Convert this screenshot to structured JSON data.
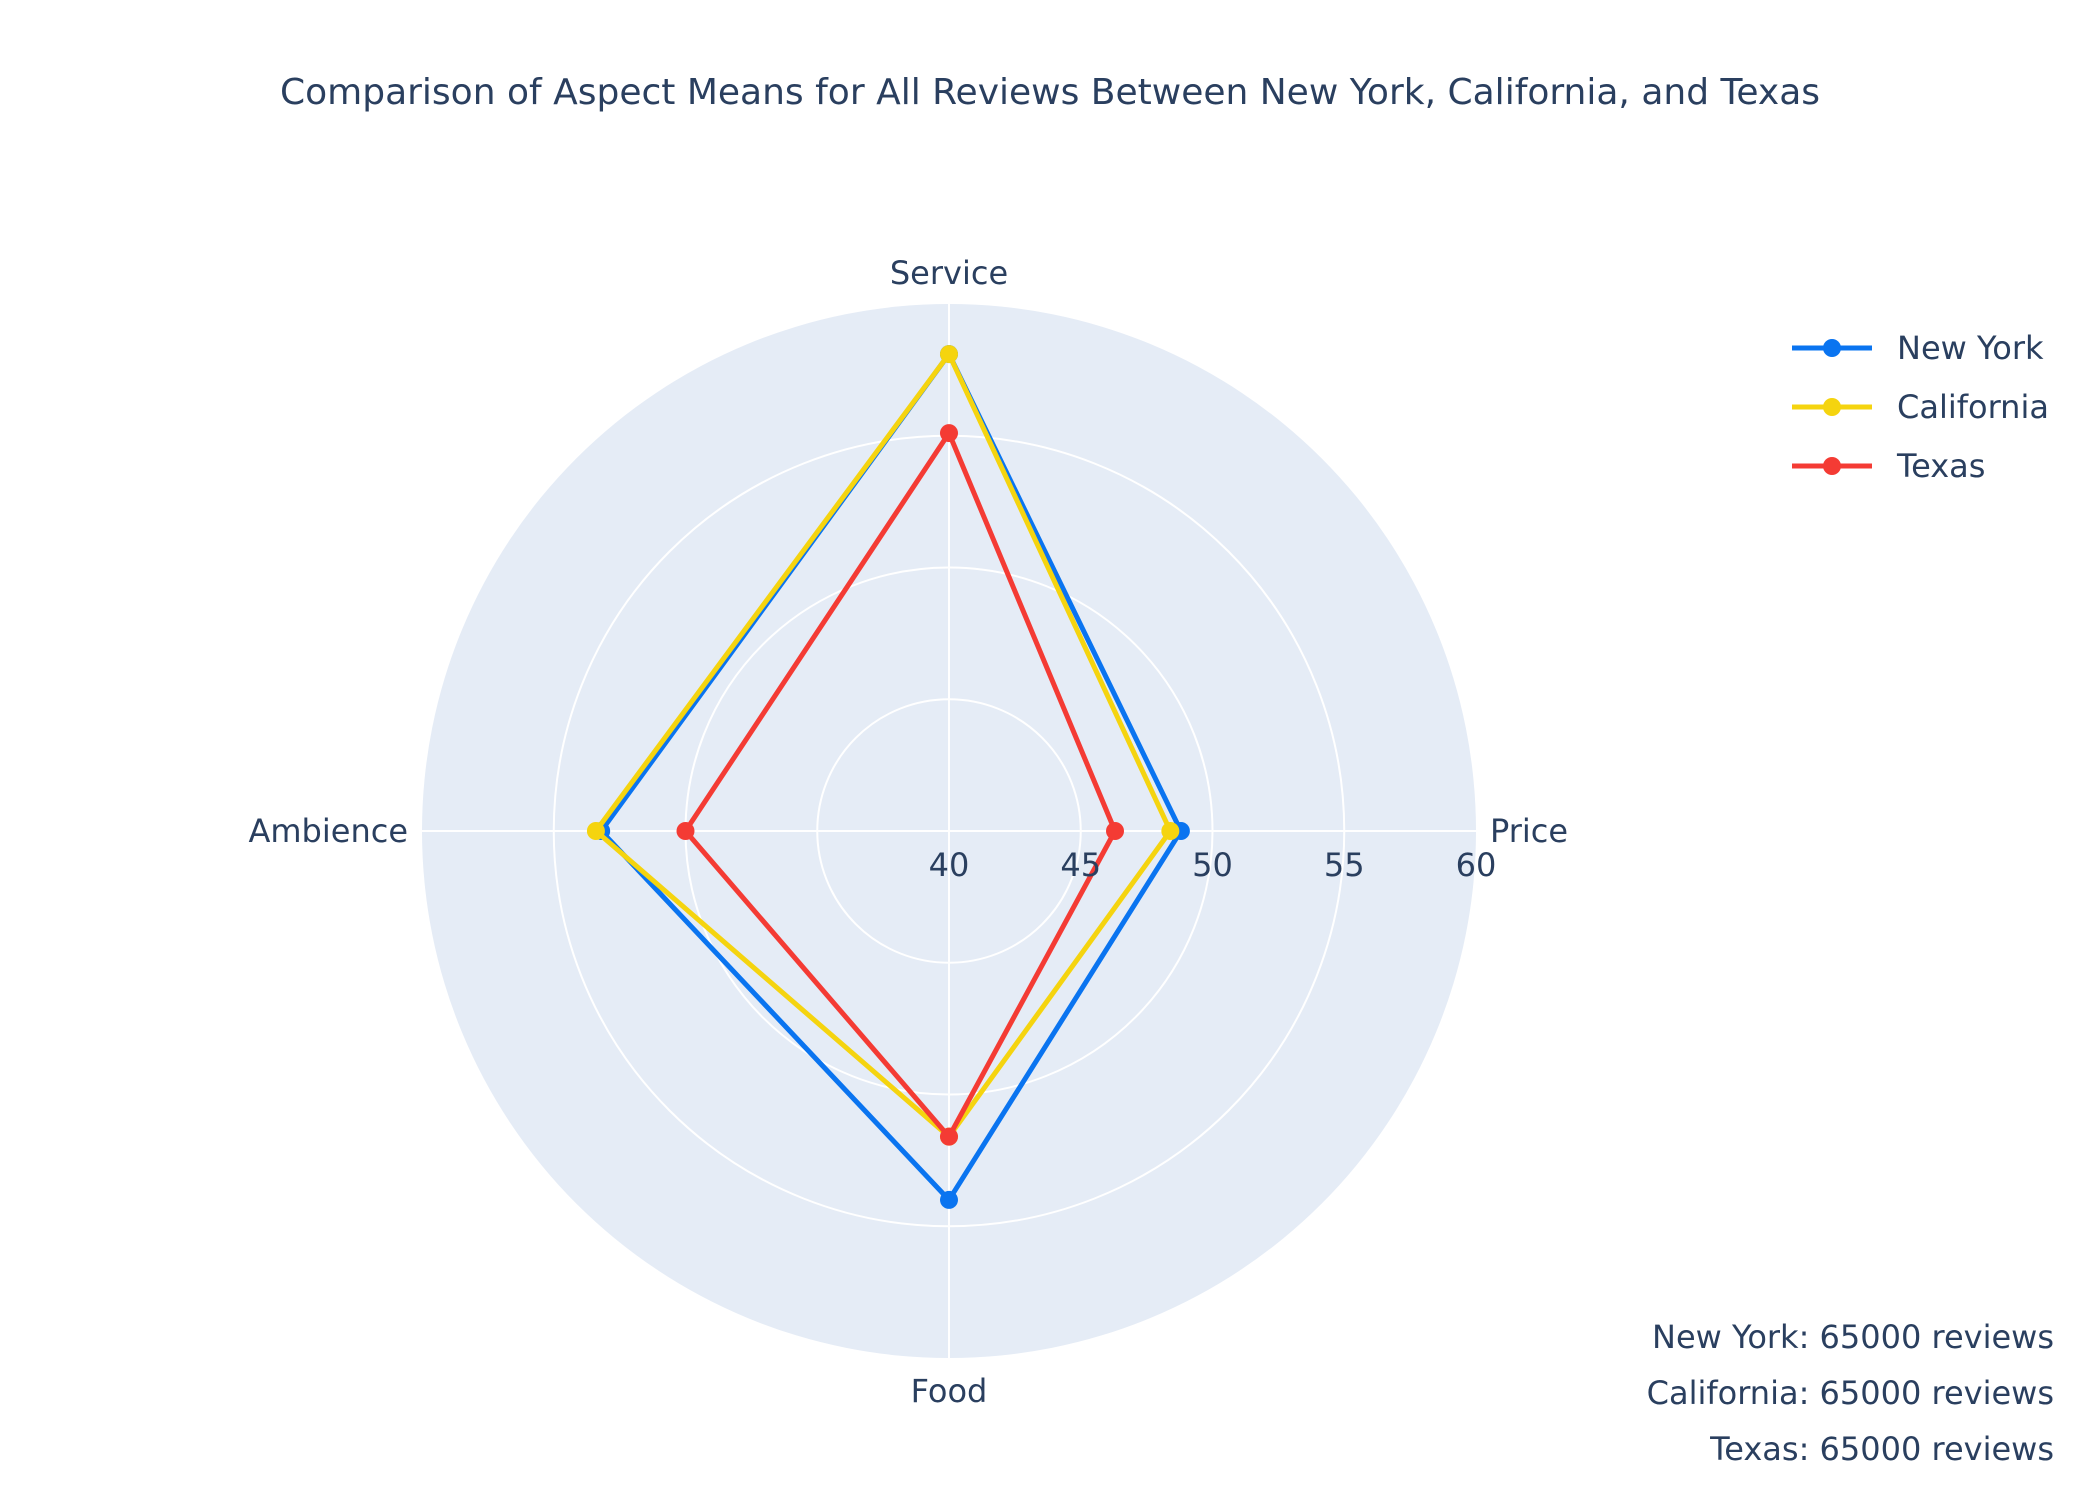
{
  "chart_data": {
    "type": "radar",
    "title": "Comparison of Aspect Means for All Reviews Between New York, California, and Texas",
    "categories": [
      "Service",
      "Price",
      "Food",
      "Ambience"
    ],
    "radial_range": [
      40,
      60
    ],
    "radial_ticks": [
      40,
      45,
      50,
      55,
      60
    ],
    "radial_tick_labels": [
      "40",
      "45",
      "50",
      "55",
      "60"
    ],
    "legend_position": "top-right",
    "series": [
      {
        "name": "New York",
        "color": "#0a74f0",
        "values": [
          58.1,
          48.8,
          54.0,
          53.2
        ]
      },
      {
        "name": "California",
        "color": "#f5d40f",
        "values": [
          58.1,
          48.4,
          51.6,
          53.4
        ]
      },
      {
        "name": "Texas",
        "color": "#f43b34",
        "values": [
          55.1,
          46.3,
          51.6,
          50.0
        ]
      }
    ],
    "annotations": [
      "New York: 65000 reviews",
      "California: 65000 reviews",
      "Texas: 65000 reviews"
    ]
  }
}
